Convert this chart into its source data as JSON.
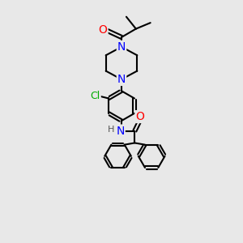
{
  "bg_color": "#e8e8e8",
  "atom_colors": {
    "O": "#ff0000",
    "N": "#0000ff",
    "Cl": "#00aa00",
    "C": "#000000",
    "H": "#555555"
  },
  "bond_color": "#000000",
  "bond_width": 1.5,
  "font_size_atom": 8,
  "fig_size": [
    3.0,
    3.0
  ],
  "dpi": 100
}
